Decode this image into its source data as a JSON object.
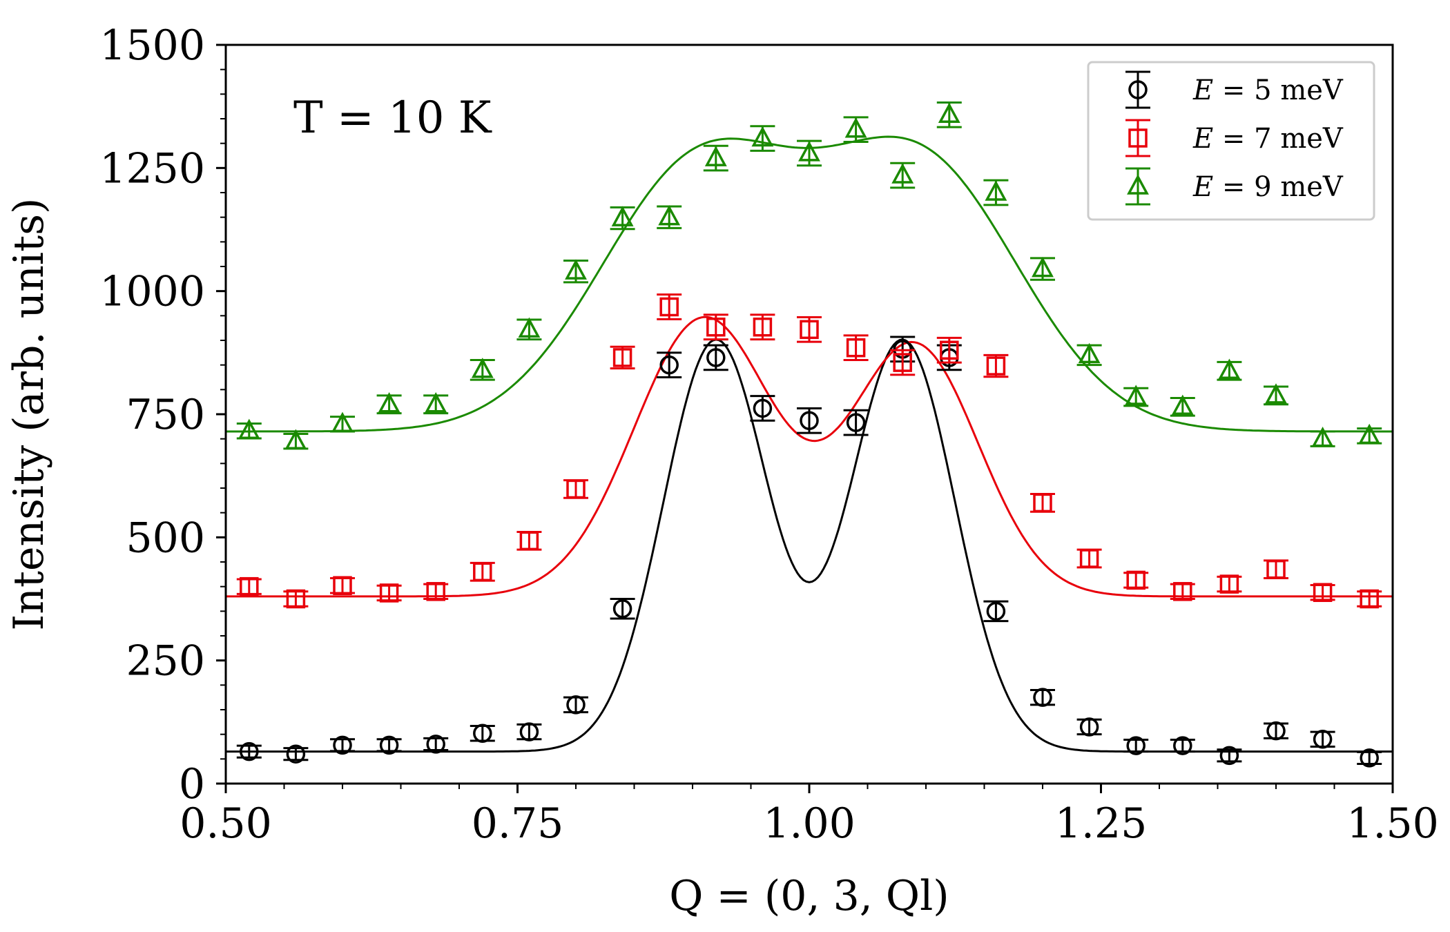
{
  "chart_data": {
    "type": "scatter",
    "title": "",
    "annotation": "T = 10 K",
    "xlabel": "Q = (0, 3, Ql)",
    "ylabel": "Intensity (arb. units)",
    "xlim": [
      0.5,
      1.5
    ],
    "ylim": [
      0,
      1500
    ],
    "xticks": [
      0.5,
      0.75,
      1.0,
      1.25,
      1.5
    ],
    "xtick_labels": [
      "0.50",
      "0.75",
      "1.00",
      "1.25",
      "1.50"
    ],
    "yticks": [
      0,
      250,
      500,
      750,
      1000,
      1250,
      1500
    ],
    "ytick_labels": [
      "0",
      "250",
      "500",
      "750",
      "1000",
      "1250",
      "1500"
    ],
    "legend_position": "top-right",
    "x": [
      0.52,
      0.56,
      0.6,
      0.64,
      0.68,
      0.72,
      0.76,
      0.8,
      0.84,
      0.88,
      0.92,
      0.96,
      1.0,
      1.04,
      1.08,
      1.12,
      1.16,
      1.2,
      1.24,
      1.28,
      1.32,
      1.36,
      1.4,
      1.44,
      1.48
    ],
    "series": [
      {
        "name": "E = 5 meV",
        "legend_var": "E",
        "legend_rest": " = 5 meV",
        "color": "#000000",
        "marker": "circle",
        "values": [
          65,
          60,
          78,
          78,
          80,
          102,
          105,
          160,
          355,
          850,
          865,
          762,
          737,
          733,
          882,
          865,
          350,
          175,
          115,
          77,
          77,
          57,
          107,
          90,
          52
        ],
        "errors": [
          12,
          12,
          12,
          12,
          12,
          15,
          15,
          15,
          20,
          25,
          25,
          25,
          25,
          25,
          25,
          25,
          20,
          15,
          15,
          12,
          12,
          12,
          15,
          15,
          12
        ],
        "fit": {
          "baseline": 65,
          "peaks": [
            {
              "center": 0.92,
              "amp": 835,
              "sigma": 0.045
            },
            {
              "center": 1.08,
              "amp": 835,
              "sigma": 0.045
            }
          ]
        }
      },
      {
        "name": "E = 7 meV",
        "legend_var": "E",
        "legend_rest": " = 7 meV",
        "color": "#e8000b",
        "marker": "square",
        "values": [
          400,
          375,
          402,
          387,
          390,
          430,
          493,
          598,
          865,
          968,
          927,
          927,
          922,
          885,
          855,
          880,
          848,
          570,
          457,
          413,
          390,
          405,
          435,
          388,
          375
        ],
        "errors": [
          15,
          15,
          15,
          15,
          15,
          18,
          18,
          18,
          22,
          25,
          25,
          25,
          25,
          25,
          25,
          25,
          22,
          18,
          18,
          15,
          15,
          15,
          18,
          15,
          15
        ],
        "fit": {
          "baseline": 380,
          "peaks": [
            {
              "center": 0.91,
              "amp": 565,
              "sigma": 0.06
            },
            {
              "center": 1.09,
              "amp": 510,
              "sigma": 0.055
            }
          ]
        }
      },
      {
        "name": "E = 9 meV",
        "legend_var": "E",
        "legend_rest": " = 9 meV",
        "color": "#1a8a00",
        "marker": "triangle",
        "values": [
          716,
          695,
          730,
          770,
          770,
          840,
          922,
          1040,
          1148,
          1150,
          1270,
          1310,
          1280,
          1328,
          1235,
          1358,
          1200,
          1045,
          870,
          785,
          765,
          838,
          788,
          700,
          706
        ],
        "errors": [
          15,
          15,
          15,
          18,
          18,
          20,
          20,
          22,
          22,
          22,
          25,
          25,
          25,
          25,
          25,
          25,
          25,
          22,
          20,
          18,
          18,
          18,
          18,
          15,
          15
        ],
        "fit": {
          "baseline": 715,
          "peaks": [
            {
              "center": 0.905,
              "amp": 535,
              "sigma": 0.085
            },
            {
              "center": 1.095,
              "amp": 540,
              "sigma": 0.085
            }
          ]
        }
      }
    ]
  }
}
